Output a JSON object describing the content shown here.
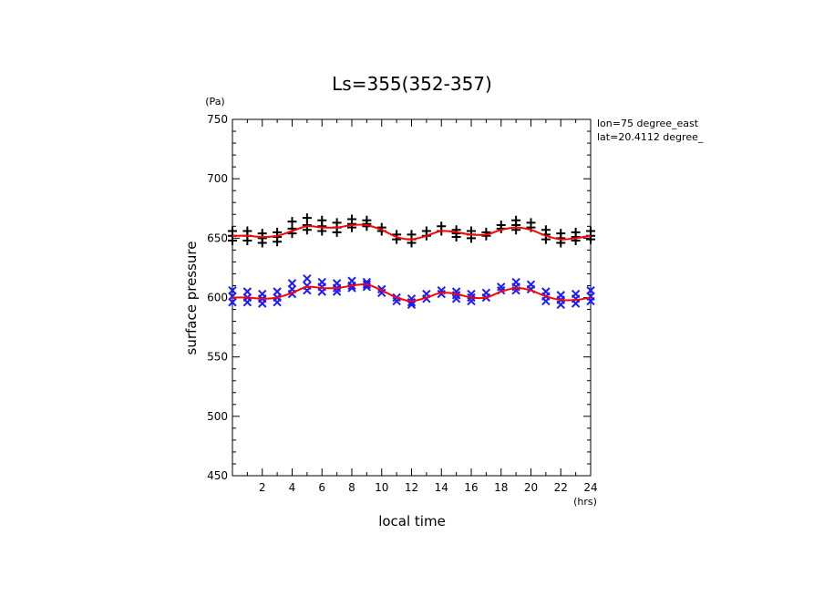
{
  "chart_data": {
    "type": "scatter",
    "title": "Ls=355(352-357)",
    "xlabel": "local time",
    "xunit": "(hrs)",
    "ylabel": "surface pressure",
    "yunit": "(Pa)",
    "xlim": [
      0,
      24
    ],
    "ylim": [
      450,
      750
    ],
    "xticks": [
      2,
      4,
      6,
      8,
      10,
      12,
      14,
      16,
      18,
      20,
      22,
      24
    ],
    "yticks": [
      450,
      500,
      550,
      600,
      650,
      700,
      750
    ],
    "annotations": [
      "lon=75 degree_east",
      "lat=20.4112 degree_"
    ],
    "grid": false,
    "colors": {
      "upper": "#000000",
      "lower": "#1a1aff",
      "fit": "#ff0000"
    },
    "series": [
      {
        "marker": "+",
        "color": "#000000",
        "x": [
          0,
          0,
          0,
          1,
          1,
          1,
          2,
          2,
          2,
          3,
          3,
          3,
          4,
          4,
          4,
          5,
          5,
          5,
          6,
          6,
          6,
          7,
          7,
          7,
          8,
          8,
          8,
          9,
          9,
          9,
          10,
          10,
          11,
          11,
          12,
          12,
          12,
          13,
          13,
          14,
          14,
          15,
          15,
          15,
          16,
          16,
          16,
          17,
          17,
          18,
          18,
          19,
          19,
          19,
          20,
          20,
          21,
          21,
          21,
          22,
          22,
          22,
          23,
          23,
          23,
          24,
          24,
          24
        ],
        "y": [
          656,
          652,
          648,
          656,
          652,
          648,
          654,
          650,
          646,
          655,
          651,
          647,
          664,
          658,
          654,
          667,
          661,
          657,
          665,
          660,
          656,
          663,
          659,
          655,
          666,
          662,
          659,
          665,
          662,
          660,
          659,
          656,
          653,
          649,
          653,
          649,
          646,
          656,
          652,
          660,
          656,
          657,
          654,
          651,
          656,
          653,
          650,
          655,
          652,
          661,
          658,
          665,
          661,
          657,
          663,
          659,
          657,
          653,
          649,
          654,
          650,
          646,
          655,
          651,
          648,
          656,
          652,
          649
        ]
      },
      {
        "marker": "x",
        "color": "#1a1aff",
        "x": [
          0,
          0,
          0,
          1,
          1,
          1,
          2,
          2,
          2,
          3,
          3,
          3,
          4,
          4,
          4,
          5,
          5,
          5,
          6,
          6,
          6,
          7,
          7,
          7,
          8,
          8,
          8,
          9,
          9,
          9,
          10,
          10,
          11,
          11,
          12,
          12,
          12,
          13,
          13,
          14,
          14,
          15,
          15,
          15,
          16,
          16,
          16,
          17,
          17,
          18,
          18,
          19,
          19,
          19,
          20,
          20,
          21,
          21,
          21,
          22,
          22,
          22,
          23,
          23,
          23,
          24,
          24,
          24
        ],
        "y": [
          606,
          601,
          596,
          605,
          600,
          596,
          603,
          599,
          595,
          605,
          600,
          596,
          612,
          607,
          603,
          616,
          610,
          606,
          613,
          609,
          605,
          612,
          608,
          605,
          614,
          610,
          608,
          613,
          611,
          609,
          607,
          604,
          600,
          597,
          599,
          596,
          594,
          603,
          599,
          606,
          603,
          605,
          602,
          599,
          603,
          600,
          597,
          604,
          600,
          609,
          606,
          613,
          609,
          606,
          611,
          607,
          605,
          601,
          597,
          602,
          598,
          594,
          603,
          599,
          595,
          606,
          601,
          597
        ]
      },
      {
        "type": "line",
        "color": "#ff0000",
        "x": [
          0,
          1,
          2,
          3,
          4,
          5,
          6,
          7,
          8,
          9,
          10,
          11,
          12,
          13,
          14,
          15,
          16,
          17,
          18,
          19,
          20,
          21,
          22,
          23,
          24
        ],
        "y": [
          652,
          652,
          651,
          652,
          656,
          660,
          659,
          659,
          661,
          661,
          657,
          651,
          649,
          652,
          656,
          655,
          653,
          653,
          657,
          659,
          657,
          652,
          649,
          650,
          652
        ]
      },
      {
        "type": "line",
        "color": "#ff0000",
        "x": [
          0,
          1,
          2,
          3,
          4,
          5,
          6,
          7,
          8,
          9,
          10,
          11,
          12,
          13,
          14,
          15,
          16,
          17,
          18,
          19,
          20,
          21,
          22,
          23,
          24
        ],
        "y": [
          600,
          600,
          599,
          600,
          604,
          609,
          608,
          608,
          610,
          611,
          606,
          600,
          597,
          600,
          604,
          603,
          600,
          600,
          605,
          608,
          606,
          601,
          598,
          598,
          600
        ]
      }
    ]
  }
}
